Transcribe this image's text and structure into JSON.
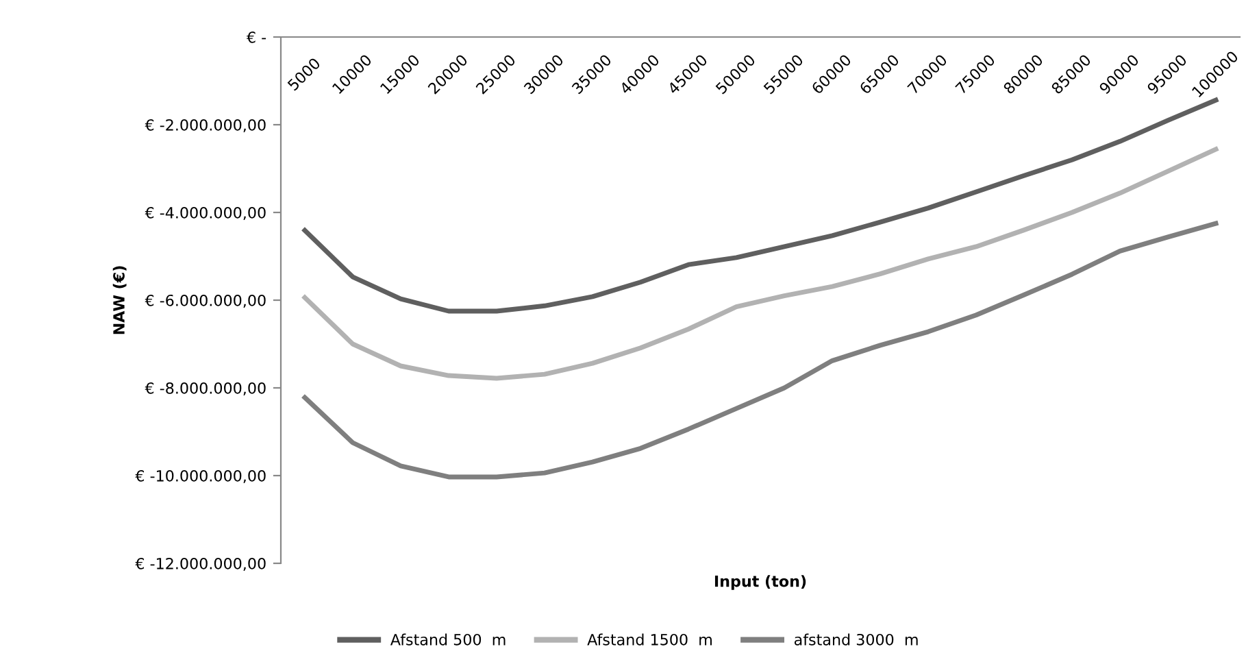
{
  "chart_data": {
    "type": "line",
    "xlabel": "Input (ton)",
    "ylabel": "NAW (€)",
    "categories": [
      "5000",
      "10000",
      "15000",
      "20000",
      "25000",
      "30000",
      "35000",
      "40000",
      "45000",
      "50000",
      "55000",
      "60000",
      "65000",
      "70000",
      "75000",
      "80000",
      "85000",
      "90000",
      "95000",
      "100000"
    ],
    "series": [
      {
        "name": "Afstand 500  m",
        "color": "#5f5f5f",
        "values": [
          -4410000,
          -5470000,
          -5970000,
          -6250000,
          -6250000,
          -6130000,
          -5920000,
          -5590000,
          -5190000,
          -5030000,
          -4780000,
          -4530000,
          -4220000,
          -3900000,
          -3530000,
          -3160000,
          -2800000,
          -2380000,
          -1900000,
          -1440000
        ]
      },
      {
        "name": "Afstand 1500  m",
        "color": "#b2b2b2",
        "values": [
          -5940000,
          -7000000,
          -7500000,
          -7720000,
          -7780000,
          -7690000,
          -7440000,
          -7090000,
          -6660000,
          -6150000,
          -5900000,
          -5690000,
          -5400000,
          -5060000,
          -4780000,
          -4400000,
          -4000000,
          -3560000,
          -3060000,
          -2560000
        ]
      },
      {
        "name": "afstand 3000  m",
        "color": "#7f7f7f",
        "values": [
          -8220000,
          -9250000,
          -9780000,
          -10030000,
          -10030000,
          -9940000,
          -9690000,
          -9380000,
          -8940000,
          -8470000,
          -8000000,
          -7380000,
          -7030000,
          -6720000,
          -6340000,
          -5880000,
          -5410000,
          -4880000,
          -4560000,
          -4250000
        ]
      }
    ],
    "ylim": [
      -12000000,
      0
    ],
    "yticks": [
      {
        "value": -12000000,
        "label": "€ -12.000.000,00"
      },
      {
        "value": -10000000,
        "label": "€ -10.000.000,00"
      },
      {
        "value": -8000000,
        "label": "€ -8.000.000,00"
      },
      {
        "value": -6000000,
        "label": "€ -6.000.000,00"
      },
      {
        "value": -4000000,
        "label": "€ -4.000.000,00"
      },
      {
        "value": -2000000,
        "label": "€ -2.000.000,00"
      },
      {
        "value": 0,
        "label": "€ -"
      }
    ],
    "grid": false,
    "legend": "bottom",
    "marker": "none",
    "line_style": "solid"
  }
}
